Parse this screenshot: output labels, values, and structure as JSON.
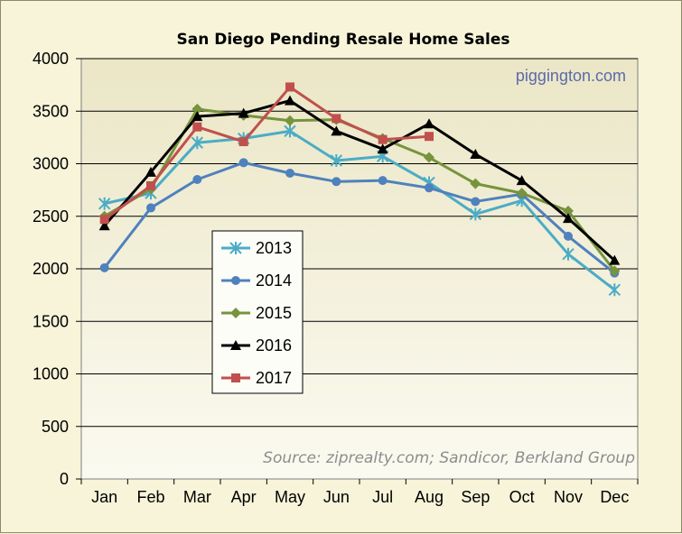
{
  "chart_data": {
    "type": "line",
    "title": "San Diego Pending Resale Home Sales",
    "watermark": "piggington.com",
    "source": "Source: ziprealty.com; Sandicor, Berkland Group",
    "categories": [
      "Jan",
      "Feb",
      "Mar",
      "Apr",
      "May",
      "Jun",
      "Jul",
      "Aug",
      "Sep",
      "Oct",
      "Nov",
      "Dec"
    ],
    "ylim": [
      0,
      4000
    ],
    "yticks": [
      0,
      500,
      1000,
      1500,
      2000,
      2500,
      3000,
      3500,
      4000
    ],
    "grid": true,
    "legend_position": "left-center inside plot",
    "series": [
      {
        "name": "2013",
        "color": "#4bacc6",
        "marker": "asterisk",
        "values": [
          2620,
          2720,
          3200,
          3240,
          3310,
          3030,
          3070,
          2820,
          2520,
          2650,
          2140,
          1800
        ]
      },
      {
        "name": "2014",
        "color": "#4f81bd",
        "marker": "circle",
        "values": [
          2010,
          2580,
          2850,
          3010,
          2910,
          2830,
          2840,
          2770,
          2640,
          2710,
          2310,
          1960
        ]
      },
      {
        "name": "2015",
        "color": "#77933c",
        "marker": "diamond",
        "values": [
          2500,
          2760,
          3520,
          3460,
          3410,
          3420,
          3240,
          3060,
          2810,
          2720,
          2550,
          1980
        ]
      },
      {
        "name": "2016",
        "color": "#000000",
        "marker": "triangle",
        "values": [
          2410,
          2920,
          3450,
          3480,
          3600,
          3310,
          3140,
          3380,
          3090,
          2840,
          2480,
          2080
        ]
      },
      {
        "name": "2017",
        "color": "#c0504d",
        "marker": "square",
        "values": [
          2470,
          2790,
          3350,
          3210,
          3730,
          3430,
          3230,
          3260,
          null,
          null,
          null,
          null
        ]
      }
    ]
  }
}
